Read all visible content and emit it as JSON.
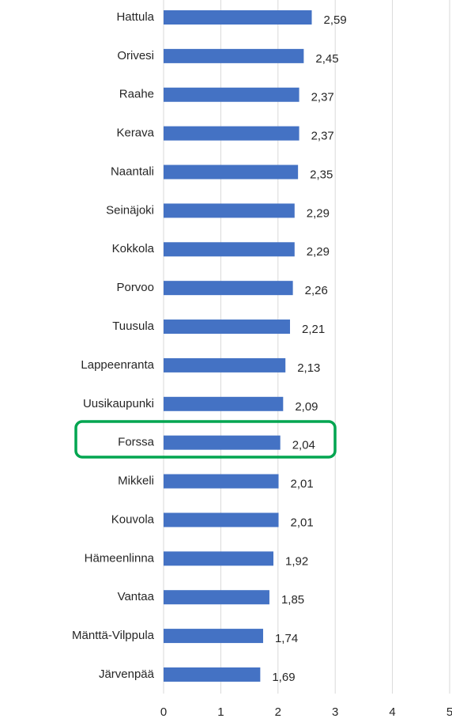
{
  "chart_data": {
    "type": "bar",
    "orientation": "horizontal",
    "categories": [
      "Hattula",
      "Orivesi",
      "Raahe",
      "Kerava",
      "Naantali",
      "Seinäjoki",
      "Kokkola",
      "Porvoo",
      "Tuusula",
      "Lappeenranta",
      "Uusikaupunki",
      "Forssa",
      "Mikkeli",
      "Kouvola",
      "Hämeenlinna",
      "Vantaa",
      "Mänttä-Vilppula",
      "Järvenpää"
    ],
    "values": [
      2.59,
      2.45,
      2.37,
      2.37,
      2.35,
      2.29,
      2.29,
      2.26,
      2.21,
      2.13,
      2.09,
      2.04,
      2.01,
      2.01,
      1.92,
      1.85,
      1.74,
      1.69
    ],
    "value_labels": [
      "2,59",
      "2,45",
      "2,37",
      "2,37",
      "2,35",
      "2,29",
      "2,29",
      "2,26",
      "2,21",
      "2,13",
      "2,09",
      "2,04",
      "2,01",
      "2,01",
      "1,92",
      "1,85",
      "1,74",
      "1,69"
    ],
    "color": "#4472c4",
    "xlim": [
      0,
      5
    ],
    "xticks": [
      0,
      1,
      2,
      3,
      4,
      5
    ],
    "grid": true
  }
}
